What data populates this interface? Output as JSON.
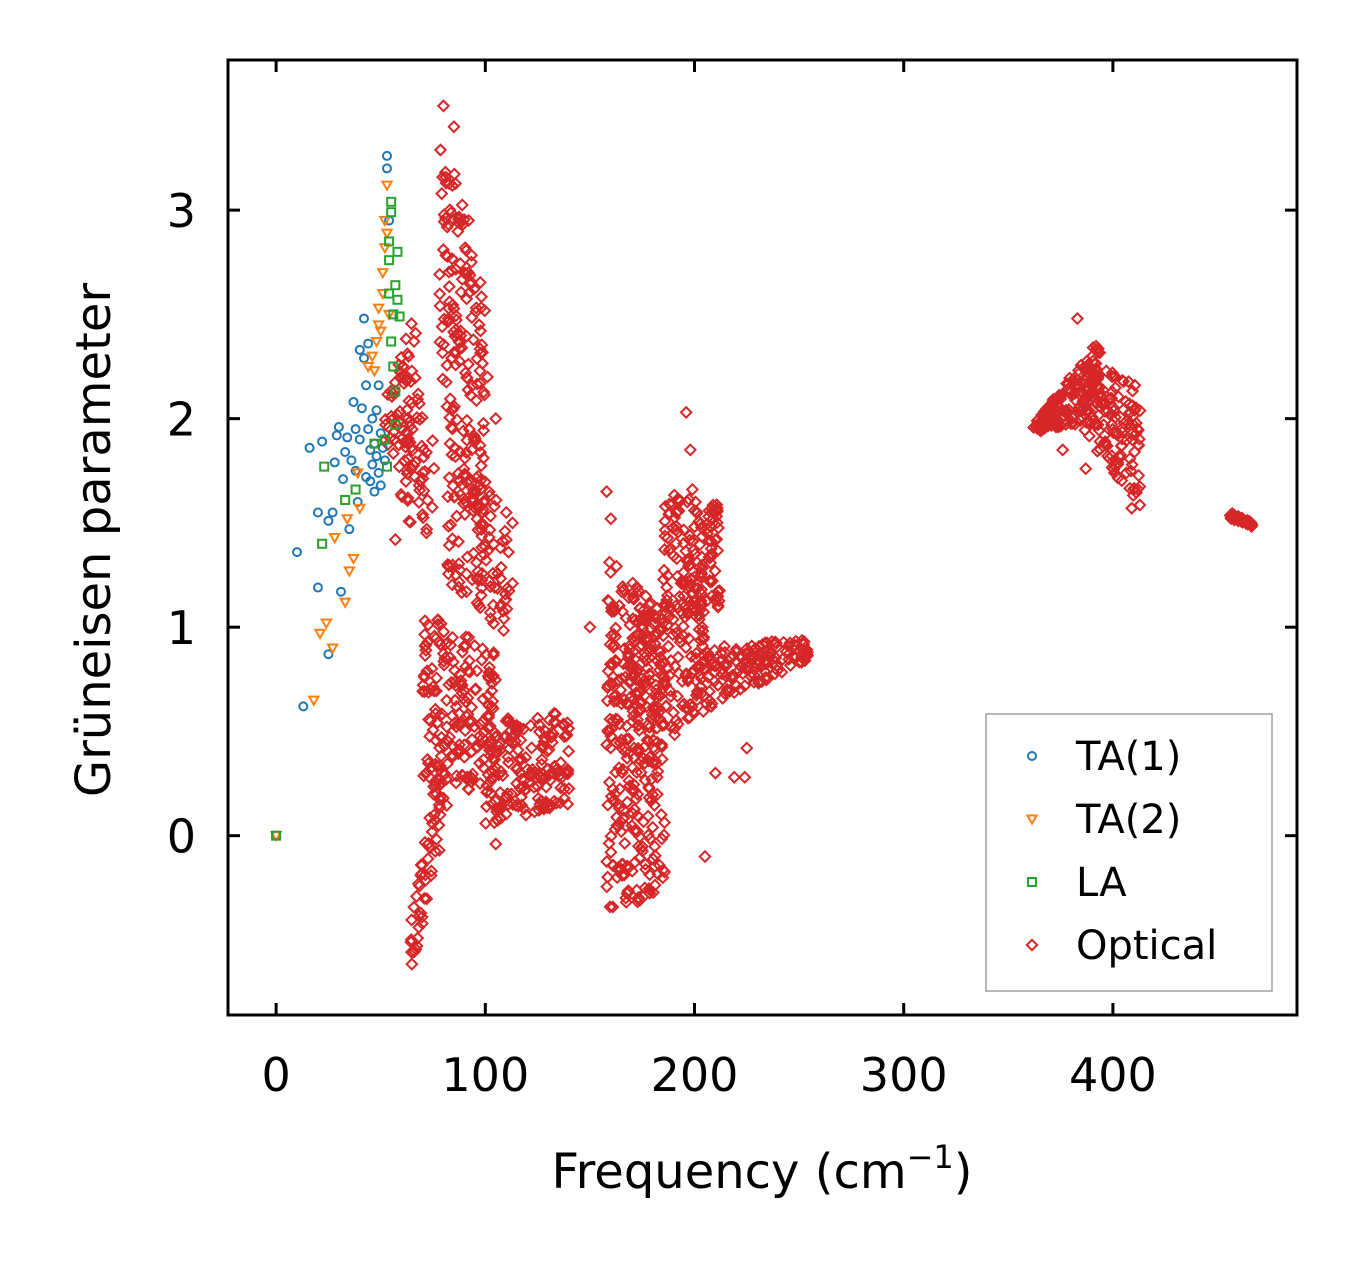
{
  "chart_data": {
    "type": "scatter",
    "title": "",
    "xlabel": "Frequency (cm",
    "xlabel_sup": "−1",
    "xlabel_close": ")",
    "ylabel": "Grüneisen parameter",
    "xlim": [
      -23,
      488
    ],
    "ylim": [
      -0.86,
      3.72
    ],
    "xticks": [
      0,
      100,
      200,
      300,
      400
    ],
    "xtick_labels": [
      "0",
      "100",
      "200",
      "300",
      "400"
    ],
    "yticks": [
      0,
      1,
      2,
      3
    ],
    "ytick_labels": [
      "0",
      "1",
      "2",
      "3"
    ],
    "grid": false,
    "legend_position": "lower right",
    "series": [
      {
        "name": "TA(1)",
        "marker": "circle",
        "color": "#1f77b4",
        "points": [
          [
            0,
            0
          ],
          [
            10,
            1.36
          ],
          [
            13,
            0.62
          ],
          [
            16,
            1.86
          ],
          [
            20,
            1.55
          ],
          [
            20,
            1.19
          ],
          [
            22,
            1.89
          ],
          [
            25,
            0.87
          ],
          [
            25,
            1.51
          ],
          [
            27,
            1.55
          ],
          [
            28,
            1.79
          ],
          [
            29,
            1.92
          ],
          [
            30,
            1.96
          ],
          [
            31,
            1.17
          ],
          [
            32,
            1.71
          ],
          [
            33,
            1.84
          ],
          [
            34,
            1.91
          ],
          [
            35,
            1.47
          ],
          [
            36,
            1.8
          ],
          [
            37,
            2.08
          ],
          [
            38,
            1.75
          ],
          [
            38,
            1.95
          ],
          [
            39,
            1.6
          ],
          [
            40,
            1.9
          ],
          [
            40,
            2.33
          ],
          [
            41,
            2.05
          ],
          [
            42,
            2.29
          ],
          [
            42,
            2.48
          ],
          [
            43,
            1.72
          ],
          [
            43,
            2.16
          ],
          [
            44,
            1.95
          ],
          [
            44,
            2.36
          ],
          [
            45,
            1.85
          ],
          [
            45,
            1.7
          ],
          [
            46,
            2.0
          ],
          [
            46,
            1.78
          ],
          [
            47,
            1.65
          ],
          [
            47,
            1.88
          ],
          [
            48,
            2.04
          ],
          [
            48,
            1.82
          ],
          [
            49,
            2.16
          ],
          [
            49,
            1.74
          ],
          [
            50,
            1.93
          ],
          [
            50,
            1.68
          ],
          [
            51,
            1.86
          ],
          [
            52,
            1.8
          ],
          [
            53,
            3.26
          ],
          [
            53,
            3.2
          ],
          [
            54,
            2.95
          ]
        ]
      },
      {
        "name": "TA(2)",
        "marker": "triangle-down",
        "color": "#ff7f0e",
        "points": [
          [
            0,
            0
          ],
          [
            18,
            0.65
          ],
          [
            21,
            0.97
          ],
          [
            24,
            1.02
          ],
          [
            27,
            0.9
          ],
          [
            28,
            1.43
          ],
          [
            33,
            1.12
          ],
          [
            34,
            1.52
          ],
          [
            35,
            1.27
          ],
          [
            37,
            1.33
          ],
          [
            39,
            1.74
          ],
          [
            40,
            1.57
          ],
          [
            44,
            2.25
          ],
          [
            46,
            2.3
          ],
          [
            47,
            2.23
          ],
          [
            48,
            2.37
          ],
          [
            49,
            2.45
          ],
          [
            49,
            2.53
          ],
          [
            50,
            2.42
          ],
          [
            51,
            2.6
          ],
          [
            51,
            2.7
          ],
          [
            52,
            2.82
          ],
          [
            52,
            2.95
          ],
          [
            53,
            3.12
          ],
          [
            53,
            2.89
          ],
          [
            54,
            2.5
          ]
        ]
      },
      {
        "name": "LA",
        "marker": "square",
        "color": "#2ca02c",
        "points": [
          [
            0,
            0
          ],
          [
            22,
            1.4
          ],
          [
            23,
            1.77
          ],
          [
            33,
            1.61
          ],
          [
            38,
            1.66
          ],
          [
            47,
            1.88
          ],
          [
            52,
            1.9
          ],
          [
            53,
            1.77
          ],
          [
            54,
            2.6
          ],
          [
            54,
            2.76
          ],
          [
            54,
            2.85
          ],
          [
            55,
            2.99
          ],
          [
            55,
            3.04
          ],
          [
            55,
            2.37
          ],
          [
            56,
            2.5
          ],
          [
            56,
            2.25
          ],
          [
            57,
            2.64
          ],
          [
            57,
            2.13
          ],
          [
            57,
            1.97
          ],
          [
            58,
            2.8
          ],
          [
            58,
            2.57
          ],
          [
            59,
            2.49
          ]
        ]
      },
      {
        "name": "Optical",
        "marker": "diamond",
        "color": "#d62728",
        "clusters": [
          {
            "x": [
              52,
              68
            ],
            "y_top": [
              2.1,
              2.55
            ],
            "y_bot": [
              1.8,
              1.7
            ],
            "n": 60
          },
          {
            "x": [
              58,
              76
            ],
            "y_top": [
              2.35,
              1.9
            ],
            "y_bot": [
              1.55,
              1.4
            ],
            "n": 45
          },
          {
            "x": [
              64,
              82
            ],
            "y_top": [
              -0.45,
              0.65
            ],
            "y_bot": [
              -0.7,
              0.15
            ],
            "n": 70
          },
          {
            "x": [
              78,
              100
            ],
            "y_top": [
              3.52,
              2.55
            ],
            "y_bot": [
              2.2,
              1.3
            ],
            "n": 160
          },
          {
            "x": [
              82,
              112
            ],
            "y_top": [
              2.1,
              1.5
            ],
            "y_bot": [
              1.2,
              0.95
            ],
            "n": 110
          },
          {
            "x": [
              70,
              105
            ],
            "y_top": [
              1.1,
              0.9
            ],
            "y_bot": [
              0.25,
              0.2
            ],
            "n": 180
          },
          {
            "x": [
              100,
              140
            ],
            "y_top": [
              0.55,
              0.6
            ],
            "y_bot": [
              0.05,
              0.15
            ],
            "n": 170
          },
          {
            "x": [
              158,
              186
            ],
            "y_top": [
              1.35,
              1.05
            ],
            "y_bot": [
              -0.35,
              -0.3
            ],
            "n": 300
          },
          {
            "x": [
              168,
              205
            ],
            "y_top": [
              1.0,
              1.3
            ],
            "y_bot": [
              0.3,
              0.6
            ],
            "n": 160
          },
          {
            "x": [
              185,
              212
            ],
            "y_top": [
              1.65,
              1.6
            ],
            "y_bot": [
              0.9,
              1.1
            ],
            "n": 140
          },
          {
            "x": [
              205,
              255
            ],
            "y_top": [
              0.9,
              0.95
            ],
            "y_bot": [
              0.6,
              0.85
            ],
            "n": 140
          },
          {
            "x": [
              362,
              395
            ],
            "y_top": [
              1.97,
              2.4
            ],
            "y_bot": [
              1.93,
              2.0
            ],
            "n": 150
          },
          {
            "x": [
              385,
              413
            ],
            "y_top": [
              2.3,
              2.15
            ],
            "y_bot": [
              1.95,
              1.55
            ],
            "n": 140
          },
          {
            "x": [
              456,
              467
            ],
            "y_top": [
              1.55,
              1.5
            ],
            "y_bot": [
              1.52,
              1.48
            ],
            "n": 40
          }
        ],
        "points": [
          [
            80,
            3.5
          ],
          [
            85,
            3.4
          ],
          [
            92,
            2.95
          ],
          [
            97,
            2.45
          ],
          [
            383,
            2.48
          ],
          [
            387,
            1.76
          ],
          [
            376,
            1.85
          ],
          [
            409,
            1.57
          ],
          [
            196,
            2.03
          ],
          [
            198,
            1.85
          ],
          [
            199,
            1.66
          ],
          [
            158,
            1.65
          ],
          [
            160,
            1.52
          ],
          [
            101,
            2.2
          ],
          [
            105,
            2.0
          ],
          [
            110,
            1.55
          ],
          [
            113,
            1.5
          ],
          [
            113,
            1.21
          ],
          [
            110,
            0.55
          ],
          [
            103,
            0.62
          ],
          [
            111,
            0.15
          ],
          [
            115,
            0.25
          ],
          [
            170,
            0.8
          ],
          [
            150,
            1.0
          ],
          [
            165,
            0.02
          ],
          [
            180,
            0.04
          ],
          [
            205,
            -0.1
          ],
          [
            210,
            0.3
          ],
          [
            219,
            0.28
          ],
          [
            224,
            0.28
          ],
          [
            225,
            0.42
          ],
          [
            57,
            1.42
          ],
          [
            63,
            1.62
          ],
          [
            70,
            1.54
          ],
          [
            72,
            1.47
          ],
          [
            82,
            1.3
          ],
          [
            86,
            1.25
          ],
          [
            91,
            1.17
          ],
          [
            105,
            -0.04
          ],
          [
            78,
            -0.07
          ]
        ]
      }
    ]
  }
}
